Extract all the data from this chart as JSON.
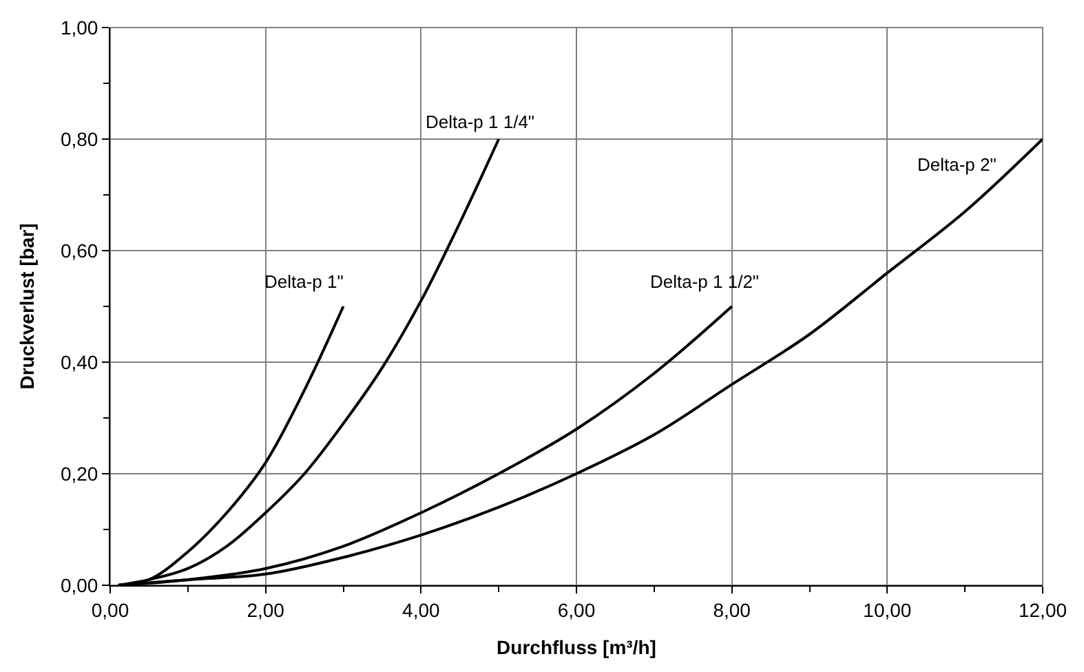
{
  "chart_data": {
    "type": "line",
    "xlabel": "Durchfluss [m³/h]",
    "ylabel": "Druckverlust [bar]",
    "xlim": [
      0,
      12
    ],
    "ylim": [
      0,
      1
    ],
    "xticks": [
      {
        "value": 0,
        "label": "0,00"
      },
      {
        "value": 2,
        "label": "2,00"
      },
      {
        "value": 4,
        "label": "4,00"
      },
      {
        "value": 6,
        "label": "6,00"
      },
      {
        "value": 8,
        "label": "8,00"
      },
      {
        "value": 10,
        "label": "10,00"
      },
      {
        "value": 12,
        "label": "12,00"
      }
    ],
    "yticks": [
      {
        "value": 0,
        "label": "0,00"
      },
      {
        "value": 0.2,
        "label": "0,20"
      },
      {
        "value": 0.4,
        "label": "0,40"
      },
      {
        "value": 0.6,
        "label": "0,60"
      },
      {
        "value": 0.8,
        "label": "0,80"
      },
      {
        "value": 1,
        "label": "1,00"
      }
    ],
    "grid": true,
    "legend": false,
    "marker": "none",
    "line_style": "solid",
    "series": [
      {
        "name": "Delta-p 1\"",
        "color": "#000000",
        "x": [
          0.1,
          0.5,
          1,
          1.5,
          2,
          2.5,
          3
        ],
        "values": [
          0,
          0.01,
          0.06,
          0.13,
          0.22,
          0.35,
          0.5
        ]
      },
      {
        "name": "Delta-p 1 1/4\"",
        "color": "#000000",
        "x": [
          0.1,
          0.5,
          1,
          1.5,
          2,
          2.5,
          3,
          3.5,
          4,
          4.5,
          5
        ],
        "values": [
          0,
          0.01,
          0.03,
          0.07,
          0.13,
          0.2,
          0.29,
          0.39,
          0.51,
          0.65,
          0.8
        ]
      },
      {
        "name": "Delta-p 1 1/2\"",
        "color": "#000000",
        "x": [
          0.1,
          1,
          2,
          3,
          4,
          5,
          6,
          7,
          8
        ],
        "values": [
          0,
          0.01,
          0.03,
          0.07,
          0.13,
          0.2,
          0.28,
          0.38,
          0.5
        ]
      },
      {
        "name": "Delta-p 2\"",
        "color": "#000000",
        "x": [
          0.1,
          1,
          2,
          3,
          4,
          5,
          6,
          7,
          8,
          9,
          10,
          11,
          12
        ],
        "values": [
          0,
          0.01,
          0.02,
          0.05,
          0.09,
          0.14,
          0.2,
          0.27,
          0.36,
          0.45,
          0.56,
          0.67,
          0.8
        ]
      }
    ]
  }
}
